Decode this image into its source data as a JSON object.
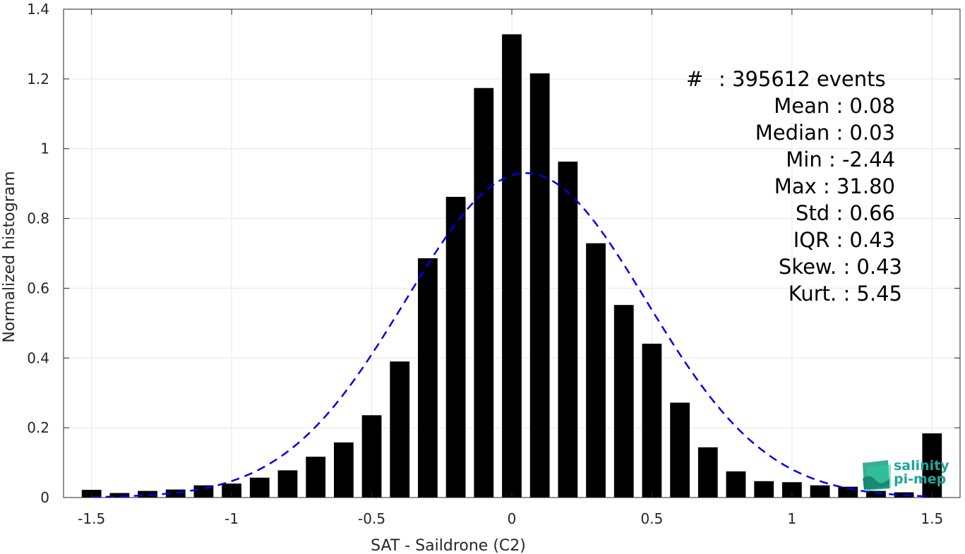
{
  "chart_data": {
    "type": "bar",
    "xlabel": "SAT - Saildrone (C2)",
    "ylabel": "Normalized histogram",
    "xlim": [
      -1.6,
      1.6
    ],
    "ylim": [
      0,
      1.4
    ],
    "xticks": [
      -1.5,
      -1,
      -0.5,
      0,
      0.5,
      1,
      1.5
    ],
    "xtick_labels": [
      "-1.5",
      "-1",
      "-0.5",
      "0",
      "0.5",
      "1",
      "1.5"
    ],
    "yticks": [
      0,
      0.2,
      0.4,
      0.6,
      0.8,
      1.0,
      1.2,
      1.4
    ],
    "ytick_labels": [
      "0",
      "0.2",
      "0.4",
      "0.6",
      "0.8",
      "1",
      "1.2",
      "1.4"
    ],
    "grid": true,
    "bar_color": "#000000",
    "fit_color": "#0000e6",
    "x": [
      -1.5,
      -1.4,
      -1.3,
      -1.2,
      -1.1,
      -1.0,
      -0.9,
      -0.8,
      -0.7,
      -0.6,
      -0.5,
      -0.4,
      -0.3,
      -0.2,
      -0.1,
      0.0,
      0.1,
      0.2,
      0.3,
      0.4,
      0.5,
      0.6,
      0.7,
      0.8,
      0.9,
      1.0,
      1.1,
      1.2,
      1.3,
      1.4,
      1.5
    ],
    "values": [
      0.022,
      0.013,
      0.019,
      0.023,
      0.035,
      0.04,
      0.057,
      0.078,
      0.117,
      0.158,
      0.236,
      0.39,
      0.686,
      0.862,
      1.174,
      1.328,
      1.216,
      0.963,
      0.729,
      0.552,
      0.441,
      0.272,
      0.144,
      0.075,
      0.047,
      0.044,
      0.035,
      0.031,
      0.019,
      0.015,
      0.184
    ],
    "gaussian_fit": {
      "mean": 0.05,
      "std": 0.43,
      "peak": 0.93,
      "style": "dashed"
    },
    "stats": [
      {
        "label": "#",
        "value": ": 395612 events"
      },
      {
        "label": "Mean",
        "value": ": 0.08"
      },
      {
        "label": "Median",
        "value": ": 0.03"
      },
      {
        "label": "Min",
        "value": ": -2.44"
      },
      {
        "label": "Max",
        "value": ": 31.80"
      },
      {
        "label": "Std",
        "value": ": 0.66"
      },
      {
        "label": "IQR",
        "value": ": 0.43"
      },
      {
        "label": "Skew.",
        "value": ": 0.43"
      },
      {
        "label": "Kurt.",
        "value": ": 5.45"
      }
    ]
  },
  "logo": {
    "line1": "salinity",
    "line2": "pi-mep",
    "icon": "salinity-logo-icon",
    "color": "#1fa79a"
  }
}
